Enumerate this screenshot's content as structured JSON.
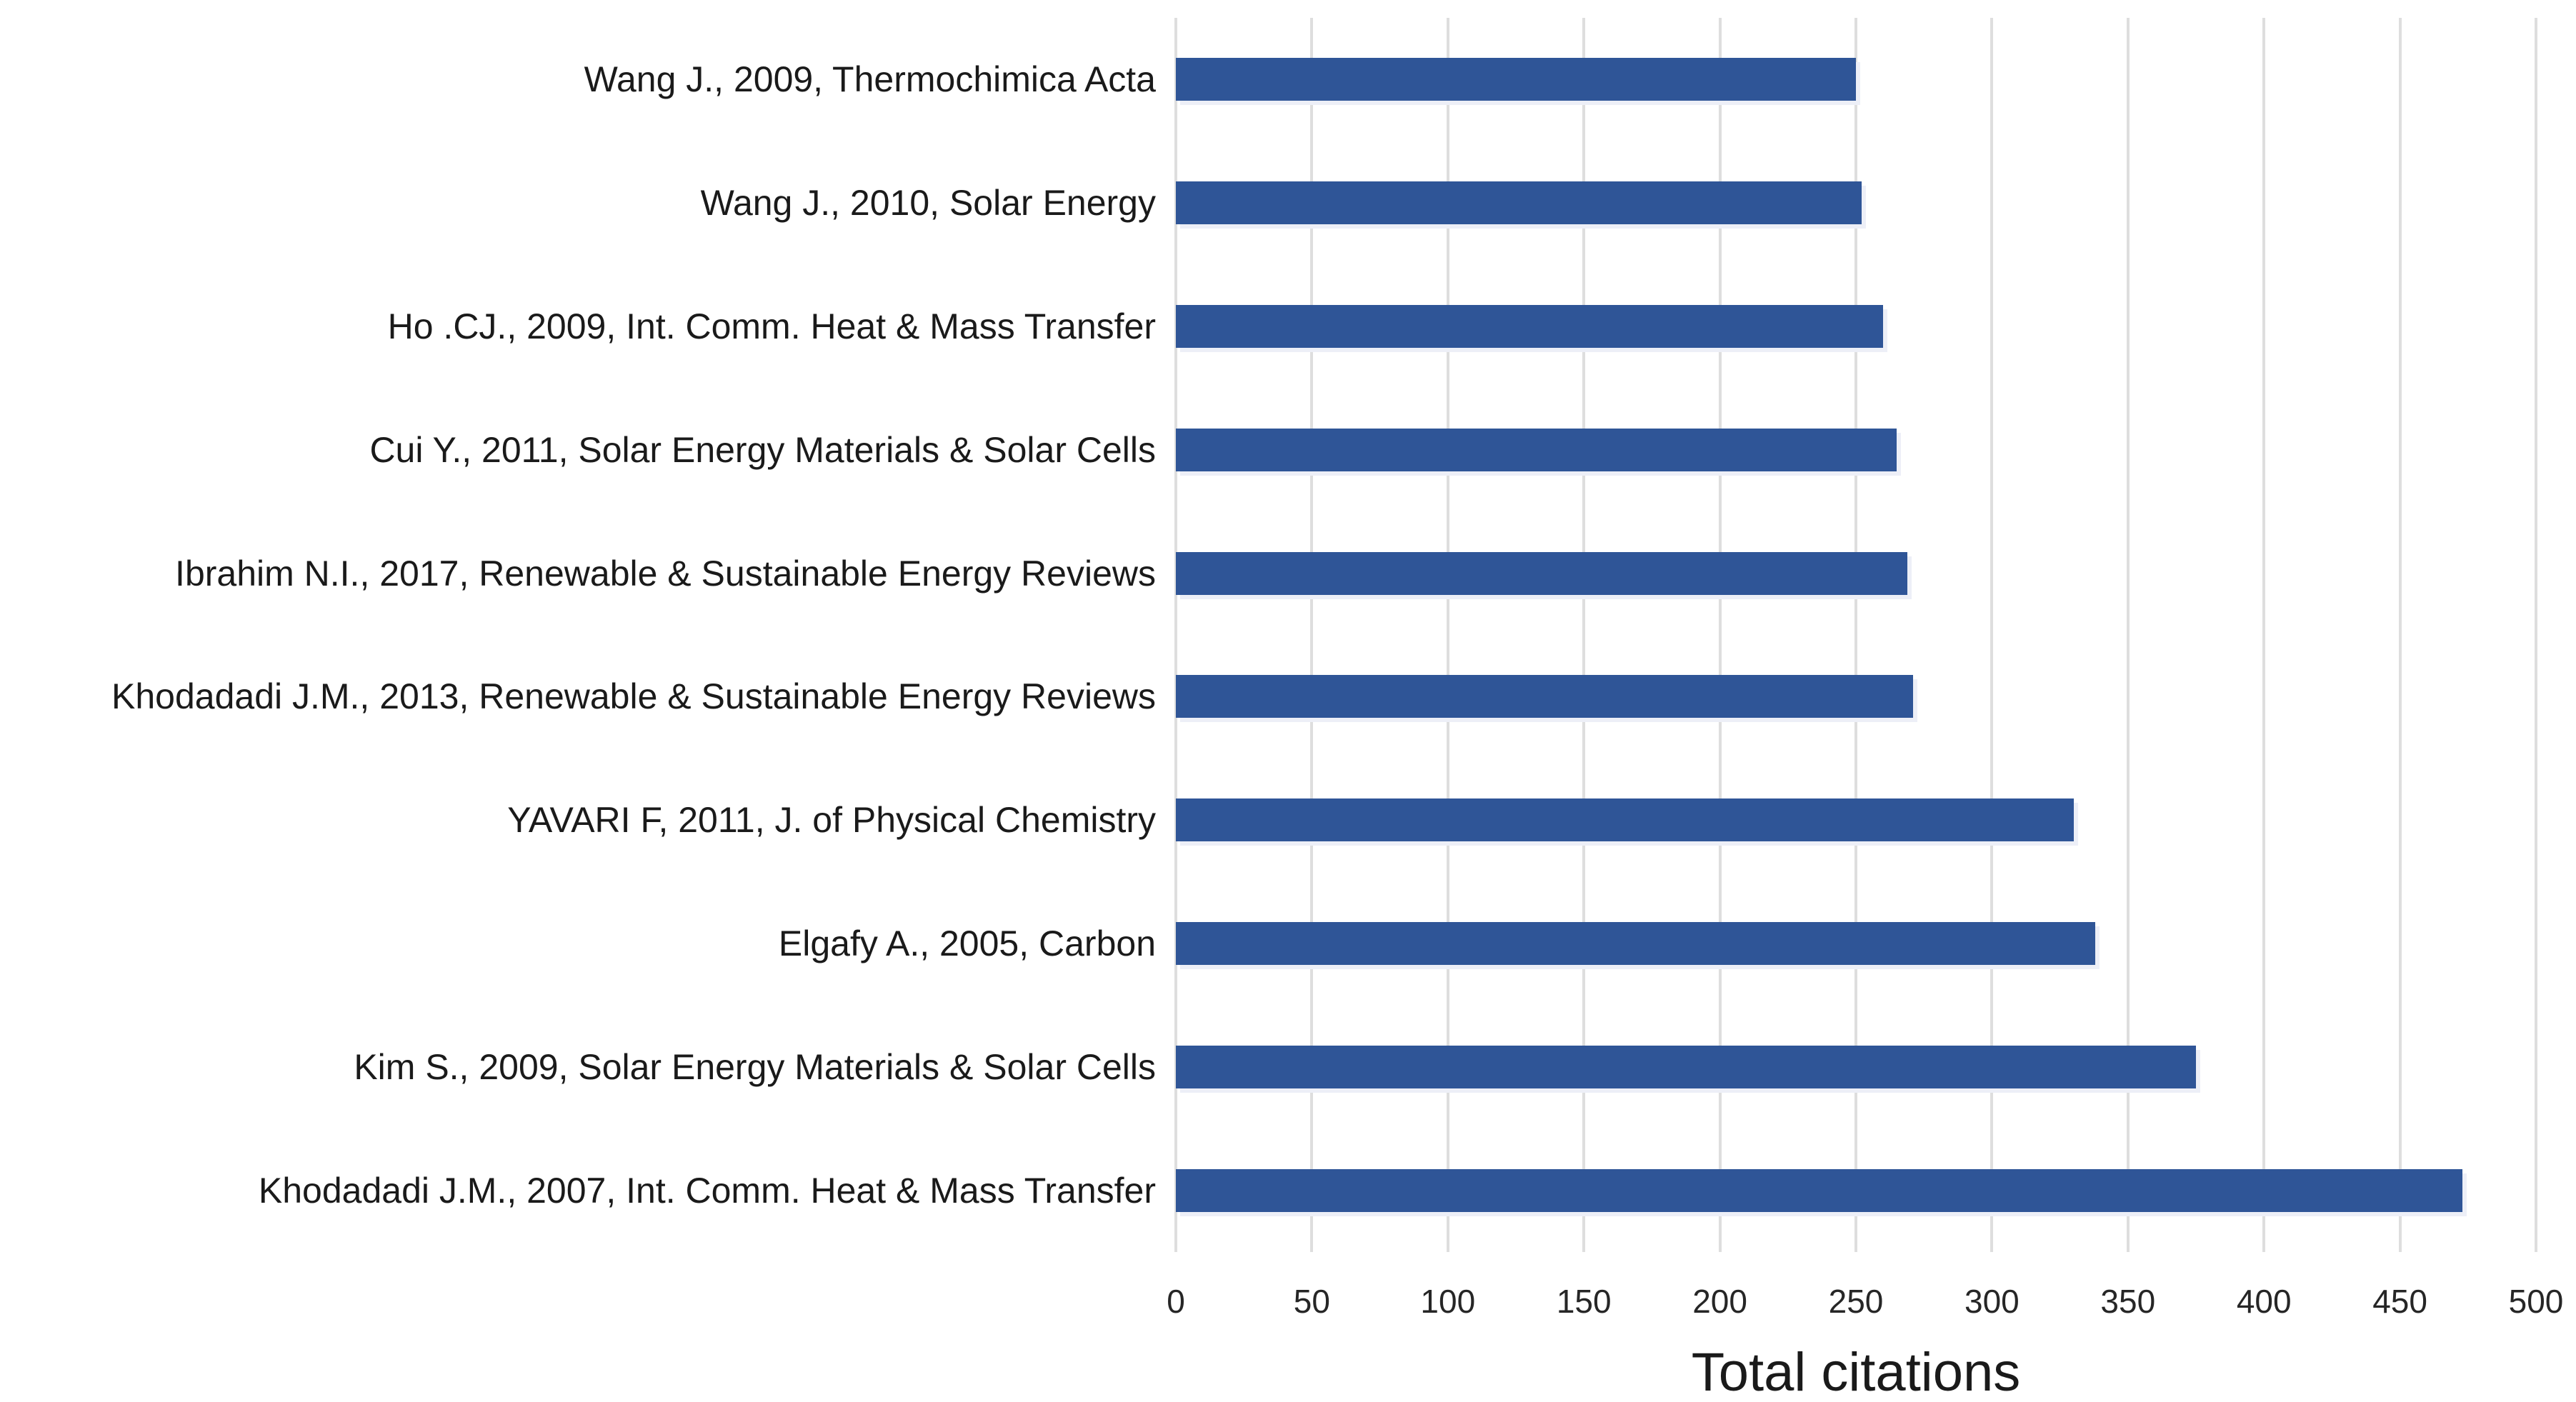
{
  "chart_data": {
    "type": "bar",
    "orientation": "horizontal",
    "title": "",
    "xlabel": "Total citations",
    "ylabel": "",
    "xlim": [
      0,
      500
    ],
    "xticks": [
      0,
      50,
      100,
      150,
      200,
      250,
      300,
      350,
      400,
      450,
      500
    ],
    "grid": true,
    "legend": false,
    "bar_color": "#2F5597",
    "bar_shadow_color": "#EDEFF7",
    "gridline_color": "#DEDEDE",
    "categories": [
      "Wang J., 2009, Thermochimica Acta",
      "Wang J., 2010, Solar Energy",
      "Ho .CJ., 2009, Int. Comm. Heat & Mass Transfer",
      "Cui Y., 2011, Solar Energy Materials & Solar Cells",
      "Ibrahim N.I., 2017, Renewable & Sustainable Energy Reviews",
      "Khodadadi J.M., 2013, Renewable & Sustainable Energy Reviews",
      "YAVARI F, 2011,  J. of Physical Chemistry",
      "Elgafy A., 2005, Carbon",
      "Kim S., 2009, Solar Energy Materials & Solar Cells",
      "Khodadadi J.M., 2007, Int. Comm. Heat & Mass Transfer"
    ],
    "values": [
      250,
      252,
      260,
      265,
      269,
      271,
      330,
      338,
      375,
      473
    ]
  }
}
